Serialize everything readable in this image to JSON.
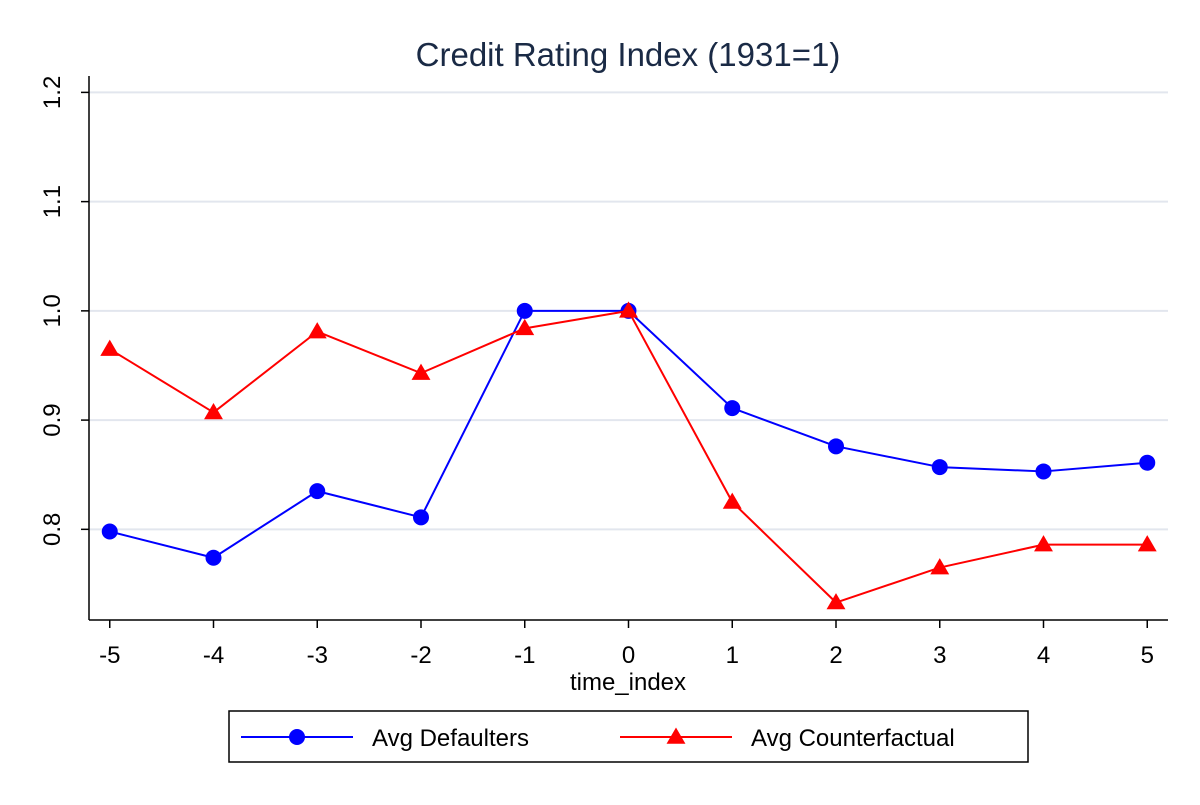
{
  "chart_data": {
    "type": "line",
    "title": "Credit Rating Index (1931=1)",
    "xlabel": "time_index",
    "ylabel": "",
    "x": [
      -5,
      -4,
      -3,
      -2,
      -1,
      0,
      1,
      2,
      3,
      4,
      5
    ],
    "x_ticks": [
      "-5",
      "-4",
      "-3",
      "-2",
      "-1",
      "0",
      "1",
      "2",
      "3",
      "4",
      "5"
    ],
    "y_ticks": [
      "0.8",
      "0.9",
      "1.0",
      "1.1",
      "1.2"
    ],
    "xlim": [
      -5.2,
      5.2
    ],
    "ylim": [
      0.717,
      1.215
    ],
    "grid": "horizontal",
    "legend_position": "bottom",
    "series": [
      {
        "name": "Avg Defaulters",
        "color": "#0000ff",
        "marker": "circle",
        "values": [
          0.798,
          0.774,
          0.835,
          0.811,
          1.0,
          1.0,
          0.911,
          0.876,
          0.857,
          0.853,
          0.861
        ]
      },
      {
        "name": "Avg Counterfactual",
        "color": "#ff0000",
        "marker": "triangle",
        "values": [
          0.965,
          0.907,
          0.981,
          0.943,
          0.984,
          1.0,
          0.825,
          0.733,
          0.765,
          0.786,
          0.786
        ]
      }
    ],
    "colors": {
      "title": "#1a2a45",
      "grid": "#e2e6ee",
      "axis": "#000000"
    }
  }
}
